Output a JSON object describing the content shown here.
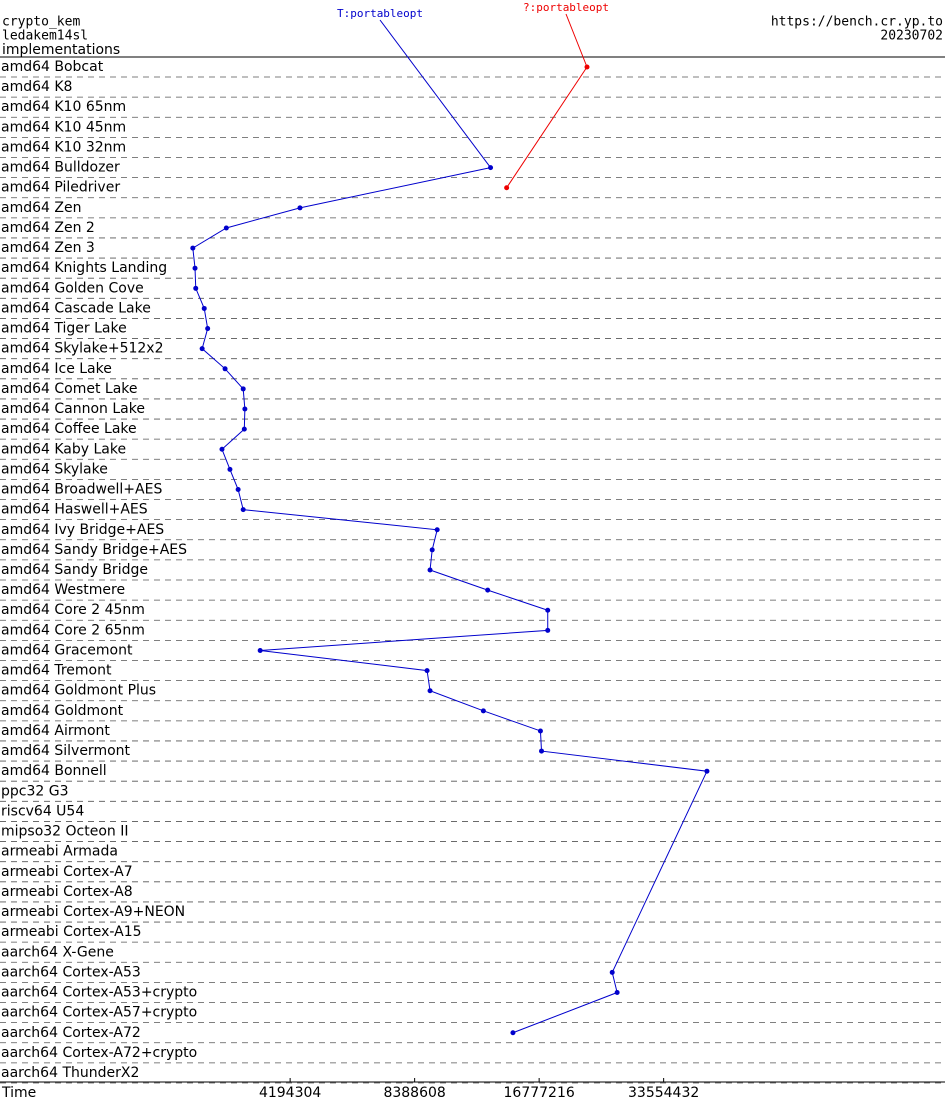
{
  "header": {
    "left": [
      "crypto_kem",
      "ledakem14sl",
      "implementations"
    ],
    "right": [
      "https://bench.cr.yp.to",
      "20230702"
    ]
  },
  "chart_data": {
    "type": "scatter-line",
    "x_label": "Time",
    "log_x": true,
    "xlim": [
      834000,
      160700000
    ],
    "xticks": [
      4194304,
      8388608,
      16777216,
      33554432
    ],
    "categories": [
      "amd64 Bobcat",
      "amd64 K8",
      "amd64 K10 65nm",
      "amd64 K10 45nm",
      "amd64 K10 32nm",
      "amd64 Bulldozer",
      "amd64 Piledriver",
      "amd64 Zen",
      "amd64 Zen 2",
      "amd64 Zen 3",
      "amd64 Knights Landing",
      "amd64 Golden Cove",
      "amd64 Cascade Lake",
      "amd64 Tiger Lake",
      "amd64 Skylake+512x2",
      "amd64 Ice Lake",
      "amd64 Comet Lake",
      "amd64 Cannon Lake",
      "amd64 Coffee Lake",
      "amd64 Kaby Lake",
      "amd64 Skylake",
      "amd64 Broadwell+AES",
      "amd64 Haswell+AES",
      "amd64 Ivy Bridge+AES",
      "amd64 Sandy Bridge+AES",
      "amd64 Sandy Bridge",
      "amd64 Westmere",
      "amd64 Core 2 45nm",
      "amd64 Core 2 65nm",
      "amd64 Gracemont",
      "amd64 Tremont",
      "amd64 Goldmont Plus",
      "amd64 Goldmont",
      "amd64 Airmont",
      "amd64 Silvermont",
      "amd64 Bonnell",
      "ppc32 G3",
      "riscv64 U54",
      "mipso32 Octeon II",
      "armeabi Armada",
      "armeabi Cortex-A7",
      "armeabi Cortex-A8",
      "armeabi Cortex-A9+NEON",
      "armeabi Cortex-A15",
      "aarch64 X-Gene",
      "aarch64 Cortex-A53",
      "aarch64 Cortex-A53+crypto",
      "aarch64 Cortex-A57+crypto",
      "aarch64 Cortex-A72",
      "aarch64 Cortex-A72+crypto",
      "aarch64 ThunderX2"
    ],
    "series": [
      {
        "name": "T:portableopt",
        "color": "#0000cc",
        "values": [
          null,
          null,
          null,
          null,
          null,
          12800000,
          null,
          4430000,
          2940000,
          2440000,
          2470000,
          2480000,
          2600000,
          2650000,
          2570000,
          2920000,
          3230000,
          3260000,
          3250000,
          2870000,
          3000000,
          3140000,
          3230000,
          9510000,
          9250000,
          9140000,
          12600000,
          17600000,
          17600000,
          3550000,
          8990000,
          9140000,
          12300000,
          16900000,
          17000000,
          42700000,
          null,
          null,
          null,
          null,
          null,
          null,
          null,
          null,
          null,
          25200000,
          25900000,
          null,
          14500000,
          null,
          null
        ]
      },
      {
        "name": "?:portableopt",
        "color": "#ee0000",
        "values": [
          21900000,
          null,
          null,
          null,
          null,
          null,
          14000000,
          null,
          null,
          null,
          null,
          null,
          null,
          null,
          null,
          null,
          null,
          null,
          null,
          null,
          null,
          null,
          null,
          null,
          null,
          null,
          null,
          null,
          null,
          null,
          null,
          null,
          null,
          null,
          null,
          null,
          null,
          null,
          null,
          null,
          null,
          null,
          null,
          null,
          null,
          null,
          null,
          null,
          null,
          null,
          null
        ]
      }
    ]
  }
}
